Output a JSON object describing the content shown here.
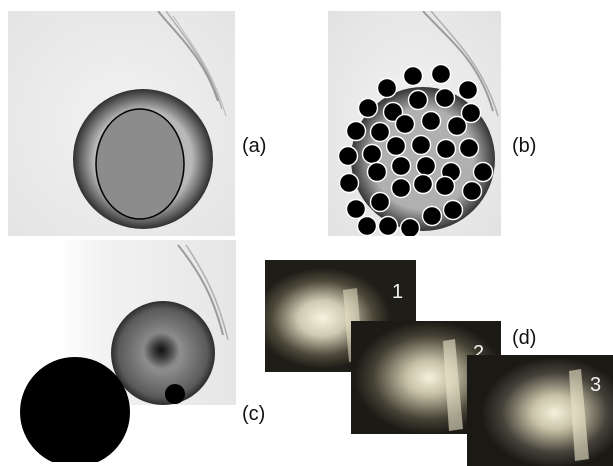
{
  "panels": {
    "a": {
      "label": "(a)"
    },
    "b": {
      "label": "(b)"
    },
    "c": {
      "label": "(c)"
    },
    "d": {
      "label": "(d)",
      "frames": [
        "1",
        "2",
        "3"
      ]
    }
  },
  "colors": {
    "overlay_gray": "#8c8c8c",
    "overlay_black": "#000000",
    "photo_dark": "#1d1b16",
    "spot_light": "#f4f1dc"
  }
}
